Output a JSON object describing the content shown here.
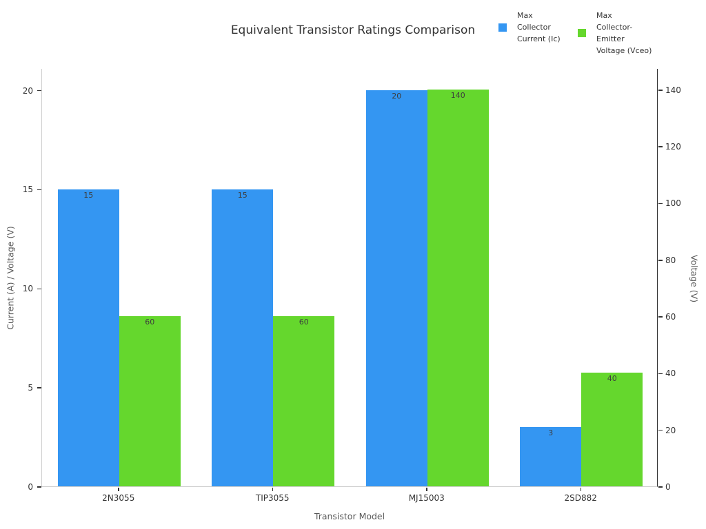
{
  "chart_data": {
    "type": "bar",
    "title": "Equivalent Transistor Ratings Comparison",
    "xlabel": "Transistor Model",
    "ylabel_left": "Current (A) / Voltage (V)",
    "ylabel_right": "Voltage (V)",
    "categories": [
      "2N3055",
      "TIP3055",
      "MJ15003",
      "2SD882"
    ],
    "series": [
      {
        "key": "ic",
        "name": "Max Collector Current (Ic)",
        "axis": "left",
        "color": "#3496F2",
        "values": [
          15,
          15,
          20,
          3
        ]
      },
      {
        "key": "vceo",
        "name": "Max Collector-Emitter Voltage (Vceo)",
        "axis": "right",
        "color": "#65D72D",
        "values": [
          60,
          60,
          140,
          40
        ]
      }
    ],
    "left_axis": {
      "ticks": [
        0,
        5,
        10,
        15,
        20
      ],
      "ylim": [
        0,
        21.1
      ]
    },
    "right_axis": {
      "ticks": [
        0,
        20,
        40,
        60,
        80,
        100,
        120,
        140
      ],
      "ylim": [
        0,
        147.5
      ]
    },
    "bar_value_labels": [
      [
        15,
        15,
        20,
        3
      ],
      [
        60,
        60,
        140,
        40
      ]
    ],
    "grid": false,
    "legend_position": "top-right"
  },
  "legend": {
    "items": [
      {
        "key": "ic",
        "color": "#3496F2",
        "text": "Max\nCollector\nCurrent (Ic)"
      },
      {
        "key": "vceo",
        "color": "#65D72D",
        "text": "Max\nCollector-\nEmitter\nVoltage (Vceo)"
      }
    ]
  }
}
